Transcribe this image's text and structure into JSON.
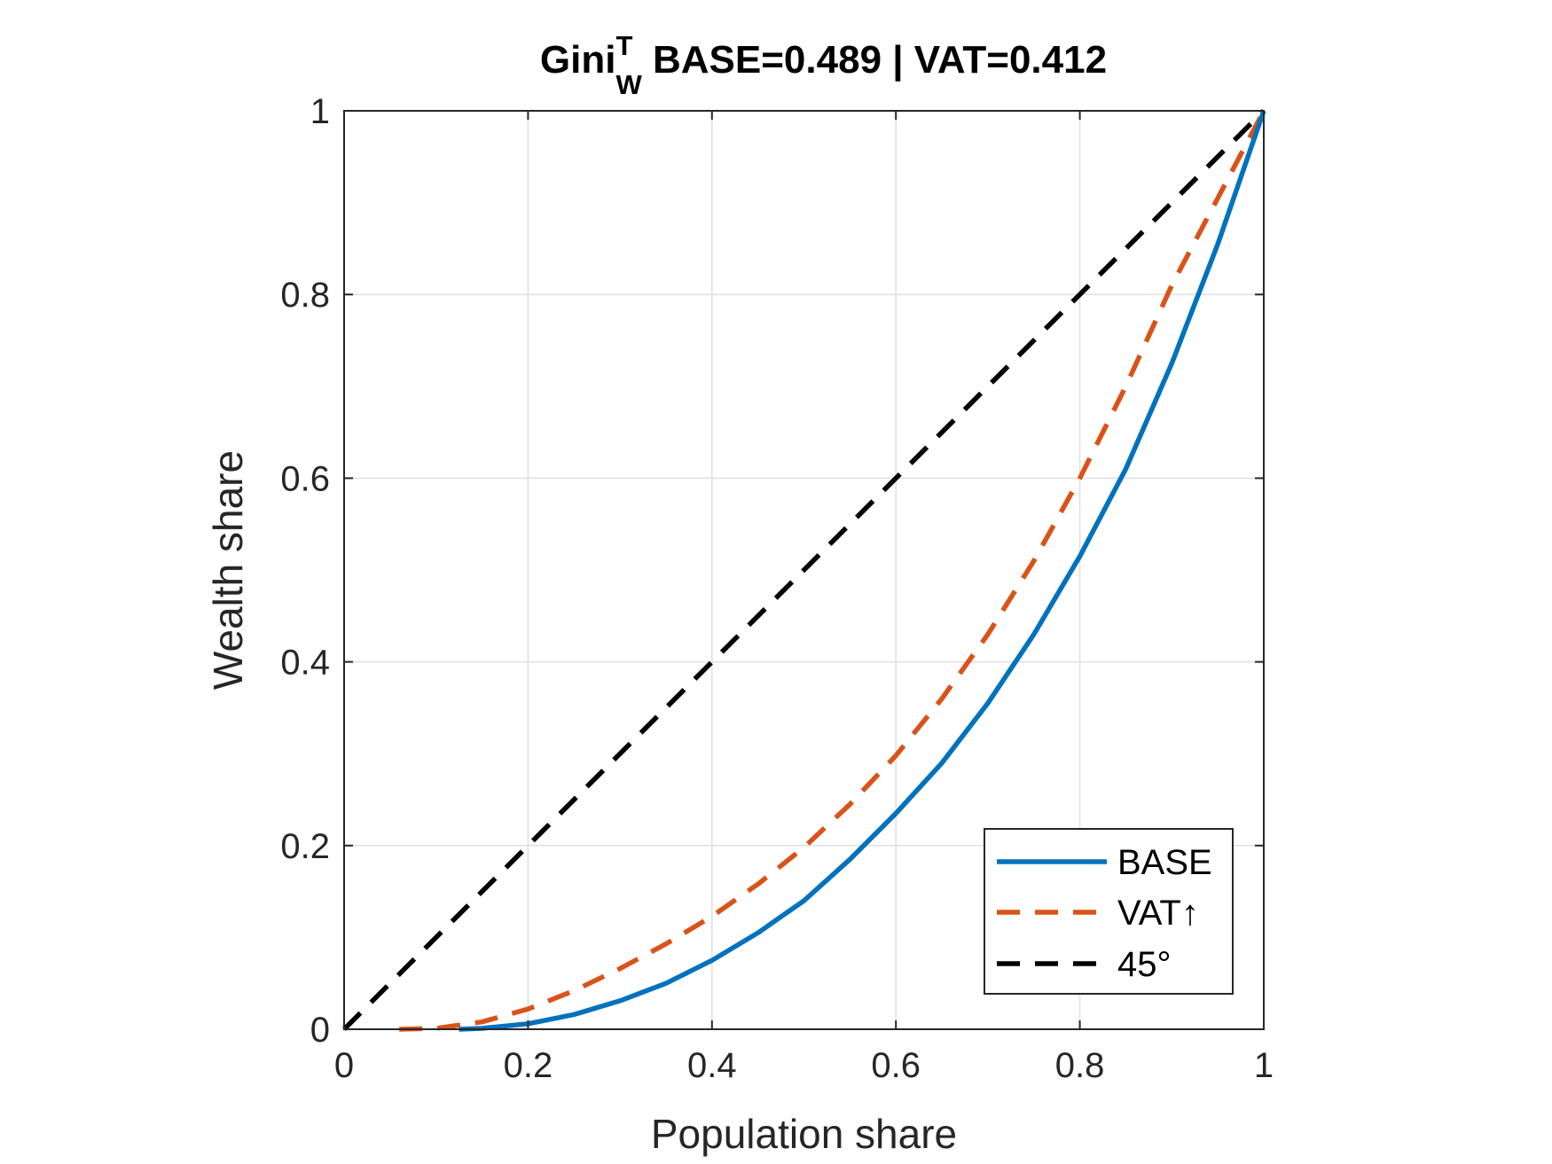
{
  "chart_data": {
    "type": "line",
    "title": {
      "main": "Gini",
      "superscript": "T",
      "subscript": "W",
      "rest": " BASE=0.489 | VAT=0.412"
    },
    "xlabel": "Population share",
    "ylabel": "Wealth share",
    "xlim": [
      0,
      1
    ],
    "ylim": [
      0,
      1
    ],
    "xticks": [
      0,
      0.2,
      0.4,
      0.6,
      0.8,
      1
    ],
    "yticks": [
      0,
      0.2,
      0.4,
      0.6,
      0.8,
      1
    ],
    "xtick_labels": [
      "0",
      "0.2",
      "0.4",
      "0.6",
      "0.8",
      "1"
    ],
    "ytick_labels": [
      "0",
      "0.2",
      "0.4",
      "0.6",
      "0.8",
      "1"
    ],
    "grid": true,
    "legend_position": "bottom-right",
    "series": [
      {
        "name": "BASE",
        "color": "#0072BD",
        "style": "solid",
        "x": [
          0.125,
          0.15,
          0.2,
          0.25,
          0.3,
          0.35,
          0.4,
          0.45,
          0.5,
          0.55,
          0.6,
          0.65,
          0.7,
          0.75,
          0.8,
          0.85,
          0.9,
          0.95,
          1.0
        ],
        "y": [
          0.0,
          0.001,
          0.006,
          0.016,
          0.031,
          0.05,
          0.075,
          0.105,
          0.14,
          0.185,
          0.235,
          0.29,
          0.355,
          0.43,
          0.515,
          0.61,
          0.725,
          0.855,
          1.0
        ]
      },
      {
        "name": "VAT↑",
        "color": "#D95319",
        "style": "dashed",
        "x": [
          0.06,
          0.1,
          0.15,
          0.2,
          0.25,
          0.3,
          0.35,
          0.4,
          0.45,
          0.5,
          0.55,
          0.6,
          0.65,
          0.7,
          0.75,
          0.8,
          0.85,
          0.9,
          0.95,
          1.0
        ],
        "y": [
          0.0,
          0.001,
          0.008,
          0.022,
          0.042,
          0.066,
          0.093,
          0.123,
          0.158,
          0.198,
          0.245,
          0.298,
          0.36,
          0.43,
          0.51,
          0.6,
          0.7,
          0.81,
          0.905,
          1.0
        ]
      },
      {
        "name": "45°",
        "color": "#000000",
        "style": "dashed",
        "x": [
          0,
          1
        ],
        "y": [
          0,
          1
        ]
      }
    ]
  }
}
